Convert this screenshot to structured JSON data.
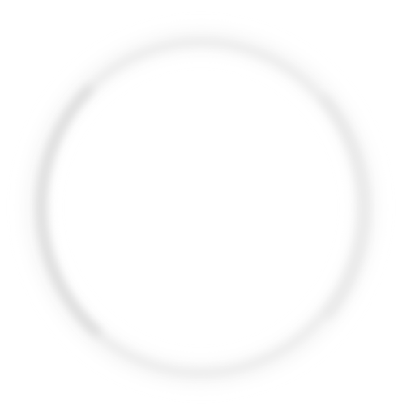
{
  "scene": {
    "background_color": "#ffffff",
    "ring_color": "#dcdcdc",
    "ring_highlight_color": "#eeeeee",
    "shape": "soft-circular-ring"
  }
}
